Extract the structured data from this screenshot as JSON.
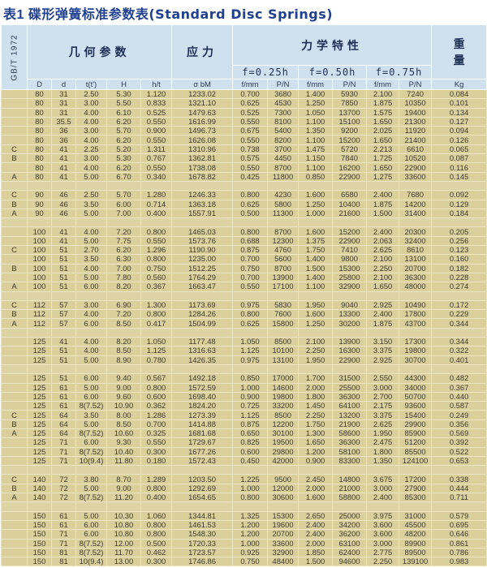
{
  "title": {
    "cn": "表1  碟形弹簧标准参数表",
    "en": "(Standard Disc Springs)"
  },
  "header": {
    "standard": "GB/T 1972",
    "geometry": "几何参数",
    "stress": "应力",
    "mechanics": "力学特性",
    "weight_1": "重",
    "weight_2": "量",
    "f_levels": [
      "f=0.25h",
      "f=0.50h",
      "f=0.75h"
    ],
    "columns": [
      "D",
      "d",
      "t(t')",
      "H",
      "h/t",
      "σ bM",
      "f/mm",
      "P/N",
      "f/mm",
      "P/N",
      "f/mm",
      "P/N",
      "Kg"
    ]
  },
  "groups": [
    [
      [
        "",
        "80",
        "31",
        "2.50",
        "5.30",
        "1.120",
        "1233.02",
        "0.700",
        "3680",
        "1.400",
        "5930",
        "2.100",
        "7240",
        "0.084"
      ],
      [
        "",
        "80",
        "31",
        "3.00",
        "5.50",
        "0.833",
        "1321.10",
        "0.625",
        "4530",
        "1.250",
        "7850",
        "1.875",
        "10350",
        "0.101"
      ],
      [
        "",
        "80",
        "31",
        "4.00",
        "6.10",
        "0.525",
        "1479.63",
        "0.525",
        "7300",
        "1.050",
        "13700",
        "1.575",
        "19400",
        "0.134"
      ],
      [
        "",
        "80",
        "35.5",
        "4.00",
        "6.20",
        "0.550",
        "1616.99",
        "0.550",
        "8100",
        "1.100",
        "15100",
        "1.650",
        "21300",
        "0.127"
      ],
      [
        "",
        "80",
        "36",
        "3.00",
        "5.70",
        "0.900",
        "1496.73",
        "0.675",
        "5400",
        "1.350",
        "9200",
        "2.025",
        "11920",
        "0.094"
      ],
      [
        "",
        "80",
        "36",
        "4.00",
        "6.20",
        "0.550",
        "1626.08",
        "0.550",
        "8200",
        "1.100",
        "15200",
        "1.650",
        "21400",
        "0.126"
      ],
      [
        "C",
        "80",
        "41",
        "2.25",
        "5.20",
        "1.311",
        "1310.96",
        "0.738",
        "3700",
        "1.475",
        "5720",
        "2.213",
        "6610",
        "0.065"
      ],
      [
        "B",
        "80",
        "41",
        "3.00",
        "5.30",
        "0.767",
        "1362.81",
        "0.575",
        "4450",
        "1.150",
        "7840",
        "1.725",
        "10520",
        "0.087"
      ],
      [
        "",
        "80",
        "41",
        "4.00",
        "6.20",
        "0.550",
        "1738.08",
        "0.550",
        "8700",
        "1.100",
        "16200",
        "1.650",
        "22900",
        "0.116"
      ],
      [
        "A",
        "80",
        "41",
        "5.00",
        "6.70",
        "0.340",
        "1678.82",
        "0.425",
        "11800",
        "0.850",
        "22900",
        "1.275",
        "33600",
        "0.145"
      ]
    ],
    [
      [
        "C",
        "90",
        "46",
        "2.50",
        "5.70",
        "1.280",
        "1246.33",
        "0.800",
        "4230",
        "1.600",
        "6580",
        "2.400",
        "7680",
        "0.092"
      ],
      [
        "B",
        "90",
        "46",
        "3.50",
        "6.00",
        "0.714",
        "1363.18",
        "0.625",
        "5800",
        "1.250",
        "10400",
        "1.875",
        "14200",
        "0.129"
      ],
      [
        "A",
        "90",
        "46",
        "5.00",
        "7.00",
        "0.400",
        "1557.91",
        "0.500",
        "11300",
        "1.000",
        "21600",
        "1.500",
        "31400",
        "0.184"
      ]
    ],
    [
      [
        "",
        "100",
        "41",
        "4.00",
        "7.20",
        "0.800",
        "1465.03",
        "0.800",
        "8700",
        "1.600",
        "15200",
        "2.400",
        "20300",
        "0.205"
      ],
      [
        "",
        "100",
        "41",
        "5.00",
        "7.75",
        "0.550",
        "1573.76",
        "0.688",
        "12300",
        "1.375",
        "22900",
        "2.063",
        "32400",
        "0.256"
      ],
      [
        "C",
        "100",
        "51",
        "2.70",
        "6.20",
        "1.296",
        "1190.90",
        "0.875",
        "4760",
        "1.750",
        "7410",
        "2.625",
        "8610",
        "0.123"
      ],
      [
        "",
        "100",
        "51",
        "3.50",
        "6.30",
        "0.800",
        "1235.00",
        "0.700",
        "5600",
        "1.400",
        "9800",
        "2.100",
        "13100",
        "0.160"
      ],
      [
        "B",
        "100",
        "51",
        "4.00",
        "7.00",
        "0.750",
        "1512.25",
        "0.750",
        "8700",
        "1.500",
        "15300",
        "2.250",
        "20700",
        "0.182"
      ],
      [
        "",
        "100",
        "51",
        "5.00",
        "7.80",
        "0.560",
        "1764.29",
        "0.700",
        "13900",
        "1.400",
        "25800",
        "2.100",
        "36300",
        "0.228"
      ],
      [
        "A",
        "100",
        "51",
        "6.00",
        "8.20",
        "0.367",
        "1663.47",
        "0.550",
        "17100",
        "1.100",
        "32900",
        "1.650",
        "48000",
        "0.274"
      ]
    ],
    [
      [
        "C",
        "112",
        "57",
        "3.00",
        "6.90",
        "1.300",
        "1173.69",
        "0.975",
        "5830",
        "1.950",
        "9040",
        "2.925",
        "10490",
        "0.172"
      ],
      [
        "B",
        "112",
        "57",
        "4.00",
        "7.20",
        "0.800",
        "1284.26",
        "0.800",
        "7600",
        "1.600",
        "13300",
        "2.400",
        "17800",
        "0.229"
      ],
      [
        "A",
        "112",
        "57",
        "6.00",
        "8.50",
        "0.417",
        "1504.99",
        "0.625",
        "15800",
        "1.250",
        "30200",
        "1.875",
        "43700",
        "0.344"
      ]
    ],
    [
      [
        "",
        "125",
        "41",
        "4.00",
        "8.20",
        "1.050",
        "1177.48",
        "1.050",
        "8500",
        "2.100",
        "13900",
        "3.150",
        "17300",
        "0.344"
      ],
      [
        "",
        "125",
        "51",
        "4.00",
        "8.50",
        "1.125",
        "1316.63",
        "1.125",
        "10100",
        "2.250",
        "16300",
        "3.375",
        "19800",
        "0.322"
      ],
      [
        "",
        "125",
        "51",
        "5.00",
        "8.90",
        "0.780",
        "1426.35",
        "0.975",
        "13100",
        "1.950",
        "22900",
        "2.925",
        "30700",
        "0.401"
      ]
    ],
    [
      [
        "",
        "125",
        "51",
        "6.00",
        "9.40",
        "0.567",
        "1492.18",
        "0.850",
        "17000",
        "1.700",
        "31500",
        "2.550",
        "44300",
        "0.482"
      ],
      [
        "",
        "125",
        "61",
        "5.00",
        "9.00",
        "0.800",
        "1572.59",
        "1.000",
        "14600",
        "2.000",
        "25500",
        "3.000",
        "34000",
        "0.367"
      ],
      [
        "",
        "125",
        "61",
        "6.00",
        "9.60",
        "0.600",
        "1698.40",
        "0.900",
        "19800",
        "1.800",
        "36300",
        "2.700",
        "50700",
        "0.440"
      ],
      [
        "",
        "125",
        "61",
        "8(7.52)",
        "10.90",
        "0.362",
        "1824.20",
        "0.725",
        "33200",
        "1.450",
        "64100",
        "2.175",
        "93600",
        "0.587"
      ],
      [
        "C",
        "125",
        "64",
        "3.50",
        "8.00",
        "1.286",
        "1273.39",
        "1.125",
        "8500",
        "2.250",
        "13200",
        "3.375",
        "15400",
        "0.249"
      ],
      [
        "B",
        "125",
        "64",
        "5.00",
        "8.50",
        "0.700",
        "1414.88",
        "0.875",
        "12200",
        "1.750",
        "21900",
        "2.625",
        "29900",
        "0.356"
      ],
      [
        "A",
        "125",
        "64",
        "8(7.52)",
        "10.60",
        "0.325",
        "1681.68",
        "0.650",
        "30100",
        "1.300",
        "58600",
        "1.950",
        "85900",
        "0.569"
      ],
      [
        "",
        "125",
        "71",
        "6.00",
        "9.30",
        "0.550",
        "1729.67",
        "0.825",
        "19500",
        "1.650",
        "36300",
        "2.475",
        "51200",
        "0.392"
      ],
      [
        "",
        "125",
        "71",
        "8(7.52)",
        "10.40",
        "0.300",
        "1677.26",
        "0.600",
        "29800",
        "1.200",
        "58100",
        "1.800",
        "85500",
        "0.522"
      ],
      [
        "",
        "125",
        "71",
        "10(9.4)",
        "11.80",
        "0.180",
        "1572.43",
        "0.450",
        "42000",
        "0.900",
        "83300",
        "1.350",
        "124100",
        "0.653"
      ]
    ],
    [
      [
        "C",
        "140",
        "72",
        "3.80",
        "8.70",
        "1.289",
        "1203.50",
        "1.225",
        "9500",
        "2.450",
        "14800",
        "3.675",
        "17200",
        "0.338"
      ],
      [
        "B",
        "140",
        "72",
        "5.00",
        "9.00",
        "0.800",
        "1292.69",
        "1.000",
        "12000",
        "2.000",
        "21000",
        "3.000",
        "27900",
        "0.444"
      ],
      [
        "A",
        "140",
        "72",
        "8(7.52)",
        "11.20",
        "0.400",
        "1654.65",
        "0.800",
        "30600",
        "1.600",
        "58800",
        "2.400",
        "85300",
        "0.711"
      ]
    ],
    [
      [
        "",
        "150",
        "61",
        "5.00",
        "10.30",
        "1.060",
        "1344.81",
        "1.325",
        "15300",
        "2.650",
        "25000",
        "3.975",
        "31000",
        "0.579"
      ],
      [
        "",
        "150",
        "61",
        "6.00",
        "10.80",
        "0.800",
        "1461.53",
        "1.200",
        "19600",
        "2.400",
        "34200",
        "3.600",
        "45500",
        "0.695"
      ],
      [
        "",
        "150",
        "71",
        "6.00",
        "10.80",
        "0.800",
        "1548.30",
        "1.200",
        "20700",
        "2.400",
        "36200",
        "3.600",
        "48200",
        "0.646"
      ],
      [
        "",
        "150",
        "71",
        "8(7.52)",
        "12.00",
        "0.500",
        "1720.33",
        "1.000",
        "33600",
        "2.000",
        "63100",
        "3.000",
        "89900",
        "0.861"
      ],
      [
        "",
        "150",
        "81",
        "8(7.52)",
        "11.70",
        "0.462",
        "1723.57",
        "0.925",
        "32900",
        "1.850",
        "62400",
        "2.775",
        "89500",
        "0.786"
      ],
      [
        "",
        "150",
        "81",
        "10(9.4)",
        "13.00",
        "0.300",
        "1746.86",
        "0.750",
        "48400",
        "1.500",
        "94600",
        "2.250",
        "139100",
        "0.983"
      ]
    ]
  ],
  "colors": {
    "title": "#20418f",
    "header_bg": "#cfe1ef",
    "row_bg": "#dbcf9b"
  }
}
